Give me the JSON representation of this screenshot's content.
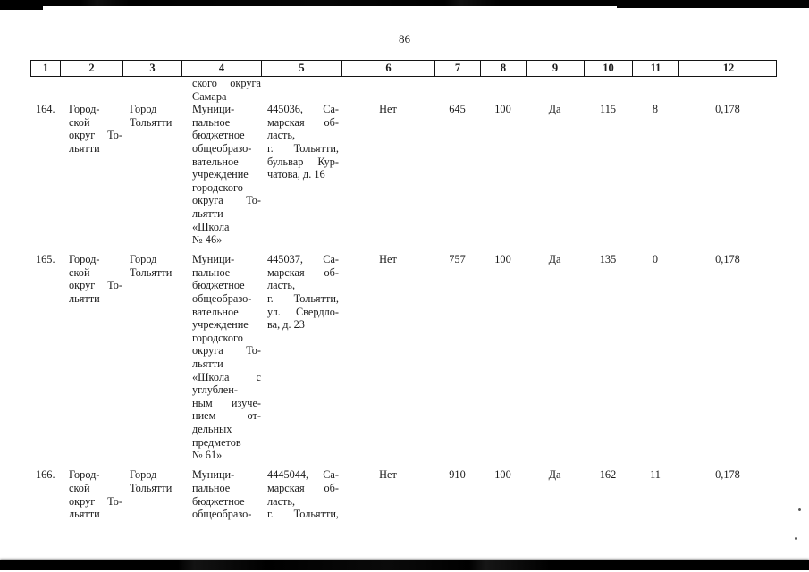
{
  "page_number": "86",
  "table": {
    "column_headers": [
      "1",
      "2",
      "3",
      "4",
      "5",
      "6",
      "7",
      "8",
      "9",
      "10",
      "11",
      "12"
    ],
    "carryover": {
      "org_lines": [
        "ского округа",
        "Самара"
      ]
    },
    "rows": [
      {
        "num": "164.",
        "district_lines": [
          "Город-",
          "ской",
          "округ То-",
          "льятти"
        ],
        "city_lines": [
          "Город",
          "Тольятти"
        ],
        "org_lines": [
          "Муници-",
          "пальное",
          "бюджетное",
          "общеобразо-",
          "вательное",
          "учреждение",
          "городского",
          "округа То-",
          "льятти",
          "«Школа",
          "№ 46»"
        ],
        "addr_lines": [
          "445036, Са-",
          "марская об-",
          "ласть,",
          "г. Тольятти,",
          "бульвар Кур-",
          "чатова, д. 16"
        ],
        "addr_justify_last": false,
        "values": [
          "Нет",
          "645",
          "100",
          "Да",
          "115",
          "8",
          "0,178"
        ]
      },
      {
        "num": "165.",
        "district_lines": [
          "Город-",
          "ской",
          "округ То-",
          "льятти"
        ],
        "city_lines": [
          "Город",
          "Тольятти"
        ],
        "org_lines": [
          "Муници-",
          "пальное",
          "бюджетное",
          "общеобразо-",
          "вательное",
          "учреждение",
          "городского",
          "округа То-",
          "льятти",
          "«Школа с",
          "углублен-",
          "ным изуче-",
          "нием от-",
          "дельных",
          "предметов",
          "№ 61»"
        ],
        "addr_lines": [
          "445037, Са-",
          "марская об-",
          "ласть,",
          "г. Тольятти,",
          "ул. Свердло-",
          "ва, д. 23"
        ],
        "addr_justify_last": false,
        "values": [
          "Нет",
          "757",
          "100",
          "Да",
          "135",
          "0",
          "0,178"
        ]
      },
      {
        "num": "166.",
        "district_lines": [
          "Город-",
          "ской",
          "округ То-",
          "льятти"
        ],
        "city_lines": [
          "Город",
          "Тольятти"
        ],
        "org_lines": [
          "Муници-",
          "пальное",
          "бюджетное",
          "общеобразо-"
        ],
        "addr_lines": [
          "4445044, Са-",
          "марская об-",
          "ласть,",
          "г. Тольятти,"
        ],
        "addr_justify_last": true,
        "values": [
          "Нет",
          "910",
          "100",
          "Да",
          "162",
          "11",
          "0,178"
        ]
      }
    ]
  }
}
